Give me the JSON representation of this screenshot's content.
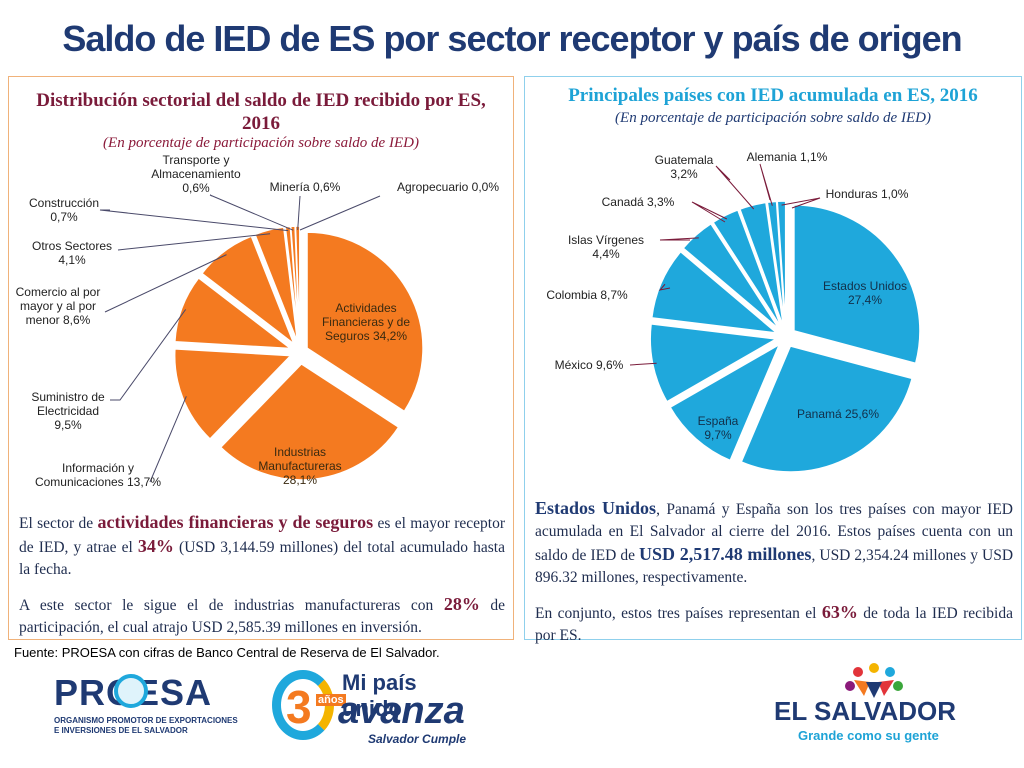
{
  "title": "Saldo de IED de ES por sector receptor y país de origen",
  "left_panel": {
    "title": "Distribución sectorial del saldo de IED recibido por ES, 2016",
    "subtitle": "(En porcentaje de participación sobre saldo de IED)",
    "p1_a": "El sector de ",
    "p1_hl": "actividades financieras y de seguros",
    "p1_b": " es el mayor receptor de IED, y atrae el ",
    "p1_pct": "34%",
    "p1_c": " (USD 3,144.59 millones) del total acumulado hasta la fecha.",
    "p2_a": "A este sector le sigue el de industrias manufactureras con ",
    "p2_pct": "28%",
    "p2_b": " de participación, el cual atrajo USD 2,585.39 millones en inversión."
  },
  "right_panel": {
    "title": "Principales países con IED acumulada en ES, 2016",
    "subtitle": "(En porcentaje de participación sobre saldo de IED)",
    "p1_hl1": "Estados Unidos",
    "p1_a": ", Panamá y España son los tres países con mayor IED acumulada en El Salvador al cierre del 2016. Estos países cuenta con un saldo de IED de ",
    "p1_hl2": "USD 2,517.48 millones",
    "p1_b": ", USD 2,354.24 millones y USD 896.32 millones, respectivamente.",
    "p2_a": "En conjunto, estos tres países representan el ",
    "p2_pct": "63%",
    "p2_b": " de toda la IED recibida por ES."
  },
  "source": "Fuente: PROESA con cifras de Banco Central de Reserva de El Salvador.",
  "logos": {
    "proesa_name": "PROESA",
    "proesa_line1": "ORGANISMO PROMOTOR DE EXPORTACIONES",
    "proesa_line2": "E INVERSIONES DE EL SALVADOR",
    "campaign_line1": "Mi país unido",
    "campaign_line2": "avanza",
    "campaign_years": "3",
    "campaign_years_word": "años",
    "campaign_tag": "Salvador Cumple",
    "country": "EL SALVADOR",
    "country_tag": "Grande como su gente"
  },
  "colors": {
    "orange": "#f47a20",
    "blue": "#1fa8dc",
    "navy": "#1f3a73",
    "maroon": "#7a1b3a"
  },
  "chart_data": [
    {
      "type": "pie",
      "title": "Distribución sectorial del saldo de IED recibido por ES, 2016",
      "unit": "%",
      "slices": [
        {
          "label": [
            "Actividades",
            "Financieras y de",
            "Seguros 34,2%"
          ],
          "value": 34.2
        },
        {
          "label": [
            "Industrias",
            "Manufactureras",
            "28,1%"
          ],
          "value": 28.1
        },
        {
          "label": [
            "Información y",
            "Comunicaciones 13,7%"
          ],
          "value": 13.7
        },
        {
          "label": [
            "Suministro de",
            "Electricidad",
            "9,5%"
          ],
          "value": 9.5
        },
        {
          "label": [
            "Comercio al por",
            "mayor y al por",
            "menor 8,6%"
          ],
          "value": 8.6
        },
        {
          "label": [
            "Otros Sectores",
            "4,1%"
          ],
          "value": 4.1
        },
        {
          "label": [
            "Construcción",
            "0,7%"
          ],
          "value": 0.7
        },
        {
          "label": [
            "Transporte y",
            "Almacenamiento",
            "0,6%"
          ],
          "value": 0.6
        },
        {
          "label": [
            "Minería 0,6%"
          ],
          "value": 0.6
        },
        {
          "label": [
            "Agropecuario 0,0%"
          ],
          "value": 0.0
        }
      ]
    },
    {
      "type": "pie",
      "title": "Principales países con IED acumulada en ES, 2016",
      "unit": "%",
      "slices": [
        {
          "label": [
            "Estados Unidos",
            "27,4%"
          ],
          "value": 27.4
        },
        {
          "label": [
            "Panamá 25,6%"
          ],
          "value": 25.6
        },
        {
          "label": [
            "España",
            "9,7%"
          ],
          "value": 9.7
        },
        {
          "label": [
            "México 9,6%"
          ],
          "value": 9.6
        },
        {
          "label": [
            "Colombia 8,7%"
          ],
          "value": 8.7
        },
        {
          "label": [
            "Islas Vírgenes",
            "4,4%"
          ],
          "value": 4.4
        },
        {
          "label": [
            "Canadá 3,3%"
          ],
          "value": 3.3
        },
        {
          "label": [
            "Guatemala",
            "3,2%"
          ],
          "value": 3.2
        },
        {
          "label": [
            "Alemania 1,1%"
          ],
          "value": 1.1
        },
        {
          "label": [
            "Honduras 1,0%"
          ],
          "value": 1.0
        }
      ]
    }
  ]
}
